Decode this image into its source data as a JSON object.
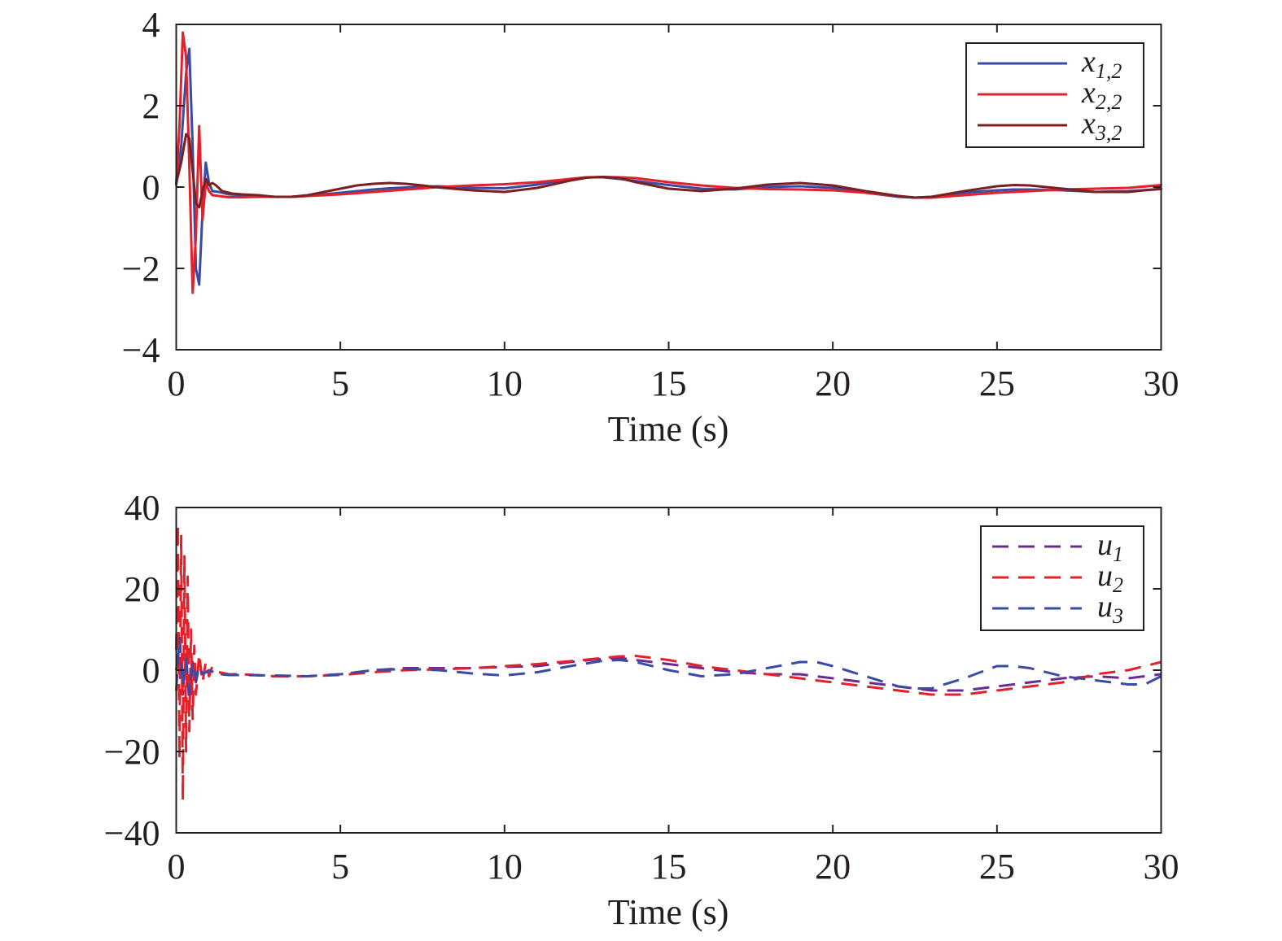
{
  "colors": {
    "axis": "#231f20",
    "blue": "#3a4ba6",
    "red": "#e4212b",
    "darkred": "#7a2023",
    "purple": "#6a2c91"
  },
  "chart_data": [
    {
      "type": "line",
      "xlabel": "Time (s)",
      "ylabel": "",
      "xlim": [
        0,
        30
      ],
      "ylim": [
        -4,
        4
      ],
      "xticks": [
        0,
        5,
        10,
        15,
        20,
        25,
        30
      ],
      "yticks": [
        -4,
        -2,
        0,
        2,
        4
      ],
      "xtick_labels": [
        "0",
        "5",
        "10",
        "15",
        "20",
        "25",
        "30"
      ],
      "ytick_labels": [
        "−4",
        "−2",
        "0",
        "2",
        "4"
      ],
      "grid": false,
      "legend_position": "top-right",
      "series": [
        {
          "name": "x1,2",
          "label_main": "x",
          "label_sub": "1,2",
          "color": "#3a4ba6",
          "dash": "solid",
          "x": [
            0,
            0.15,
            0.3,
            0.4,
            0.5,
            0.6,
            0.7,
            0.8,
            0.9,
            1.0,
            1.1,
            1.3,
            1.6,
            2,
            2.5,
            3,
            3.5,
            4,
            4.5,
            5,
            5.5,
            6,
            6.5,
            7,
            7.5,
            8,
            9,
            10,
            11,
            12,
            12.5,
            13,
            13.5,
            14,
            15,
            16,
            17,
            18,
            19,
            20,
            21,
            22,
            22.5,
            23,
            24,
            25,
            25.5,
            26,
            27,
            28,
            29,
            30
          ],
          "y": [
            0.05,
            1.0,
            2.8,
            3.4,
            1.0,
            -2.0,
            -2.4,
            -0.6,
            0.6,
            0.1,
            -0.1,
            -0.12,
            -0.18,
            -0.2,
            -0.22,
            -0.24,
            -0.24,
            -0.22,
            -0.18,
            -0.14,
            -0.1,
            -0.06,
            -0.03,
            -0.01,
            0.01,
            0.02,
            -0.02,
            -0.03,
            0.06,
            0.2,
            0.24,
            0.24,
            0.2,
            0.15,
            0.05,
            -0.04,
            -0.06,
            0.0,
            0.02,
            -0.02,
            -0.14,
            -0.24,
            -0.26,
            -0.24,
            -0.14,
            -0.08,
            -0.06,
            -0.06,
            -0.08,
            -0.12,
            -0.1,
            -0.05
          ]
        },
        {
          "name": "x2,2",
          "label_main": "x",
          "label_sub": "2,2",
          "color": "#e4212b",
          "dash": "solid",
          "x": [
            0,
            0.1,
            0.2,
            0.3,
            0.4,
            0.5,
            0.6,
            0.7,
            0.8,
            0.9,
            1.0,
            1.1,
            1.3,
            1.6,
            2,
            2.5,
            3,
            3.5,
            4,
            4.5,
            5,
            5.5,
            6,
            7,
            8,
            9,
            10,
            11,
            12,
            12.5,
            13,
            13.5,
            14,
            15,
            16,
            17,
            18,
            19,
            20,
            21,
            22,
            22.5,
            23,
            24,
            25,
            26,
            27,
            28,
            29,
            30
          ],
          "y": [
            0.1,
            1.5,
            3.8,
            3.2,
            0.5,
            -2.6,
            -1.2,
            1.5,
            -0.8,
            0.1,
            -0.1,
            -0.2,
            -0.22,
            -0.25,
            -0.25,
            -0.24,
            -0.24,
            -0.24,
            -0.22,
            -0.2,
            -0.18,
            -0.15,
            -0.12,
            -0.06,
            0.0,
            0.04,
            0.07,
            0.12,
            0.2,
            0.24,
            0.25,
            0.24,
            0.22,
            0.12,
            0.04,
            -0.02,
            -0.05,
            -0.06,
            -0.08,
            -0.14,
            -0.22,
            -0.26,
            -0.26,
            -0.2,
            -0.14,
            -0.1,
            -0.06,
            -0.04,
            -0.02,
            0.05
          ]
        },
        {
          "name": "x3,2",
          "label_main": "x",
          "label_sub": "3,2",
          "color": "#7a2023",
          "dash": "solid",
          "x": [
            0,
            0.15,
            0.3,
            0.4,
            0.5,
            0.6,
            0.7,
            0.8,
            0.9,
            1.0,
            1.1,
            1.2,
            1.4,
            1.7,
            2,
            2.5,
            3,
            3.5,
            4,
            4.5,
            5,
            5.5,
            6,
            6.5,
            7,
            7.5,
            8,
            9,
            10,
            11,
            12,
            12.5,
            13,
            13.5,
            14,
            15,
            16,
            17,
            18,
            19,
            20,
            21,
            22,
            22.5,
            23,
            24,
            25,
            25.5,
            26,
            27,
            28,
            29,
            30
          ],
          "y": [
            0.1,
            0.6,
            1.3,
            1.2,
            0.4,
            -0.4,
            -0.5,
            -0.1,
            0.2,
            0.05,
            0.1,
            0.05,
            -0.1,
            -0.16,
            -0.18,
            -0.2,
            -0.24,
            -0.24,
            -0.2,
            -0.12,
            -0.04,
            0.04,
            0.08,
            0.1,
            0.08,
            0.04,
            -0.01,
            -0.08,
            -0.12,
            -0.02,
            0.16,
            0.23,
            0.25,
            0.22,
            0.12,
            -0.04,
            -0.1,
            -0.04,
            0.06,
            0.1,
            0.04,
            -0.1,
            -0.22,
            -0.26,
            -0.24,
            -0.1,
            0.02,
            0.05,
            0.04,
            -0.04,
            -0.12,
            -0.12,
            -0.04
          ]
        }
      ]
    },
    {
      "type": "line",
      "xlabel": "Time (s)",
      "ylabel": "",
      "xlim": [
        0,
        30
      ],
      "ylim": [
        -40,
        40
      ],
      "xticks": [
        0,
        5,
        10,
        15,
        20,
        25,
        30
      ],
      "yticks": [
        -40,
        -20,
        0,
        20,
        40
      ],
      "xtick_labels": [
        "0",
        "5",
        "10",
        "15",
        "20",
        "25",
        "30"
      ],
      "ytick_labels": [
        "−40",
        "−20",
        "0",
        "20",
        "40"
      ],
      "grid": false,
      "legend_position": "top-right",
      "series": [
        {
          "name": "u1",
          "label_main": "u",
          "label_sub": "1",
          "color": "#6a2c91",
          "dash": "dashed",
          "x": [
            0,
            0.1,
            0.2,
            0.3,
            0.4,
            0.5,
            0.6,
            0.7,
            0.8,
            1.0,
            1.3,
            1.6,
            2,
            3,
            4,
            5,
            6,
            7,
            8,
            9,
            10,
            11,
            12,
            13,
            13.5,
            14,
            15,
            16,
            17,
            18,
            19,
            20,
            21,
            22,
            23,
            24,
            25,
            26,
            27,
            28,
            29,
            30
          ],
          "y": [
            0,
            8,
            -6,
            4,
            -8,
            2,
            -3,
            1,
            -1,
            0,
            -1,
            -1,
            -1,
            -1.5,
            -1.5,
            -1,
            0,
            0.5,
            0.5,
            0.5,
            0.8,
            1,
            2,
            2.8,
            3,
            2.5,
            1.5,
            0.5,
            -0.5,
            -1,
            -1,
            -2,
            -3,
            -4,
            -5,
            -5,
            -4,
            -3,
            -2,
            -1.5,
            -2,
            -1
          ]
        },
        {
          "name": "u2",
          "label_main": "u",
          "label_sub": "2",
          "color": "#e4212b",
          "dash": "dashed",
          "x": [
            0,
            0.05,
            0.1,
            0.15,
            0.2,
            0.25,
            0.3,
            0.35,
            0.4,
            0.45,
            0.5,
            0.55,
            0.6,
            0.7,
            0.8,
            0.9,
            1.0,
            1.1,
            1.3,
            1.6,
            2,
            3,
            4,
            5,
            6,
            7,
            8,
            9,
            10,
            11,
            12,
            13,
            13.5,
            14,
            15,
            16,
            17,
            18,
            19,
            20,
            21,
            22,
            23,
            24,
            25,
            26,
            27,
            28,
            29,
            30
          ],
          "y": [
            5,
            36,
            -22,
            33,
            -32,
            28,
            -20,
            23,
            -15,
            10,
            -12,
            6,
            -6,
            4,
            -3,
            2,
            -1.5,
            1,
            -0.5,
            -1,
            -1,
            -1.5,
            -1.5,
            -1.2,
            -0.5,
            0,
            0.2,
            0.5,
            1,
            1.5,
            2.2,
            3,
            3.4,
            3.5,
            2.5,
            1,
            0,
            -1,
            -2,
            -3,
            -4,
            -5,
            -6,
            -6,
            -5,
            -4,
            -3,
            -1,
            0,
            2
          ]
        },
        {
          "name": "u3",
          "label_main": "u",
          "label_sub": "3",
          "color": "#3a4ba6",
          "dash": "dashed",
          "x": [
            0,
            0.1,
            0.2,
            0.3,
            0.4,
            0.5,
            0.6,
            0.7,
            0.8,
            1.0,
            1.3,
            1.6,
            2,
            3,
            4,
            5,
            6,
            7,
            8,
            9,
            10,
            11,
            12,
            13,
            13.5,
            14,
            15,
            16,
            17,
            18,
            19,
            19.5,
            20,
            21,
            22,
            22.5,
            23,
            24,
            25,
            25.5,
            26,
            27,
            28,
            29,
            29.5,
            30
          ],
          "y": [
            -5,
            8,
            -4,
            3,
            -6,
            2,
            -2,
            1,
            -1,
            0,
            -1,
            -1.2,
            -1.2,
            -1.3,
            -1.5,
            -1,
            0,
            0.3,
            0,
            -0.8,
            -1.3,
            -0.5,
            1,
            2.3,
            2.5,
            2,
            0,
            -1.5,
            -1,
            0.5,
            2,
            2,
            1,
            -1.5,
            -4,
            -4.5,
            -4.5,
            -2,
            1,
            1,
            0.5,
            -1.5,
            -2.5,
            -3.5,
            -3.5,
            -1.5
          ]
        }
      ]
    }
  ]
}
